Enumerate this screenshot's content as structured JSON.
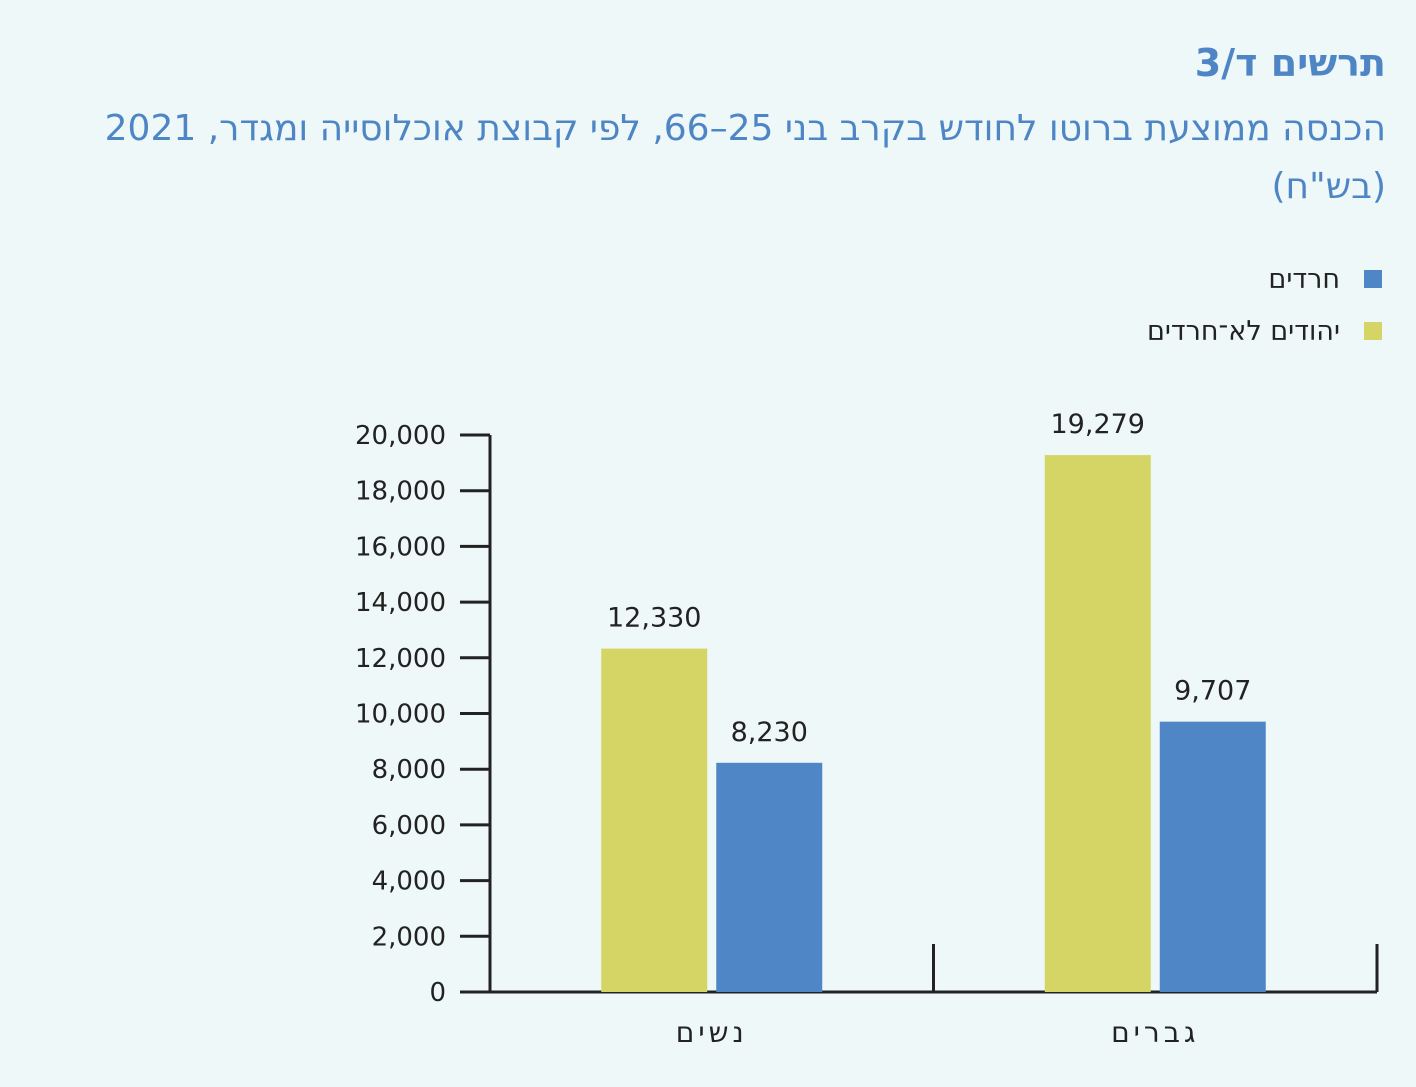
{
  "header": {
    "figure_number": "תרשים ד/3",
    "title": "הכנסה ממוצעת ברוטו לחודש בקרב בני 25–66, לפי קבוצת אוכלוסייה ומגדר, 2021 (בש\"ח)"
  },
  "legend": [
    {
      "label": "חרדים",
      "color": "#4f86c6"
    },
    {
      "label": "יהודים לא־חרדים",
      "color": "#d4d564"
    }
  ],
  "chart_data": {
    "type": "bar",
    "categories": [
      "נשים",
      "גברים"
    ],
    "series": [
      {
        "name": "יהודים לא־חרדים",
        "color": "#d4d564",
        "values": [
          12330,
          19279
        ],
        "labels": [
          "12,330",
          "19,279"
        ]
      },
      {
        "name": "חרדים",
        "color": "#4f86c6",
        "values": [
          8230,
          9707
        ],
        "labels": [
          "8,230",
          "9,707"
        ]
      }
    ],
    "ylim": [
      0,
      20000
    ],
    "yticks": [
      0,
      2000,
      4000,
      6000,
      8000,
      10000,
      12000,
      14000,
      16000,
      18000,
      20000
    ],
    "ytick_labels": [
      "0",
      "2,000",
      "4,000",
      "6,000",
      "8,000",
      "10,000",
      "12,000",
      "14,000",
      "16,000",
      "18,000",
      "20,000"
    ],
    "grid": false,
    "legend_position": "top-right"
  }
}
